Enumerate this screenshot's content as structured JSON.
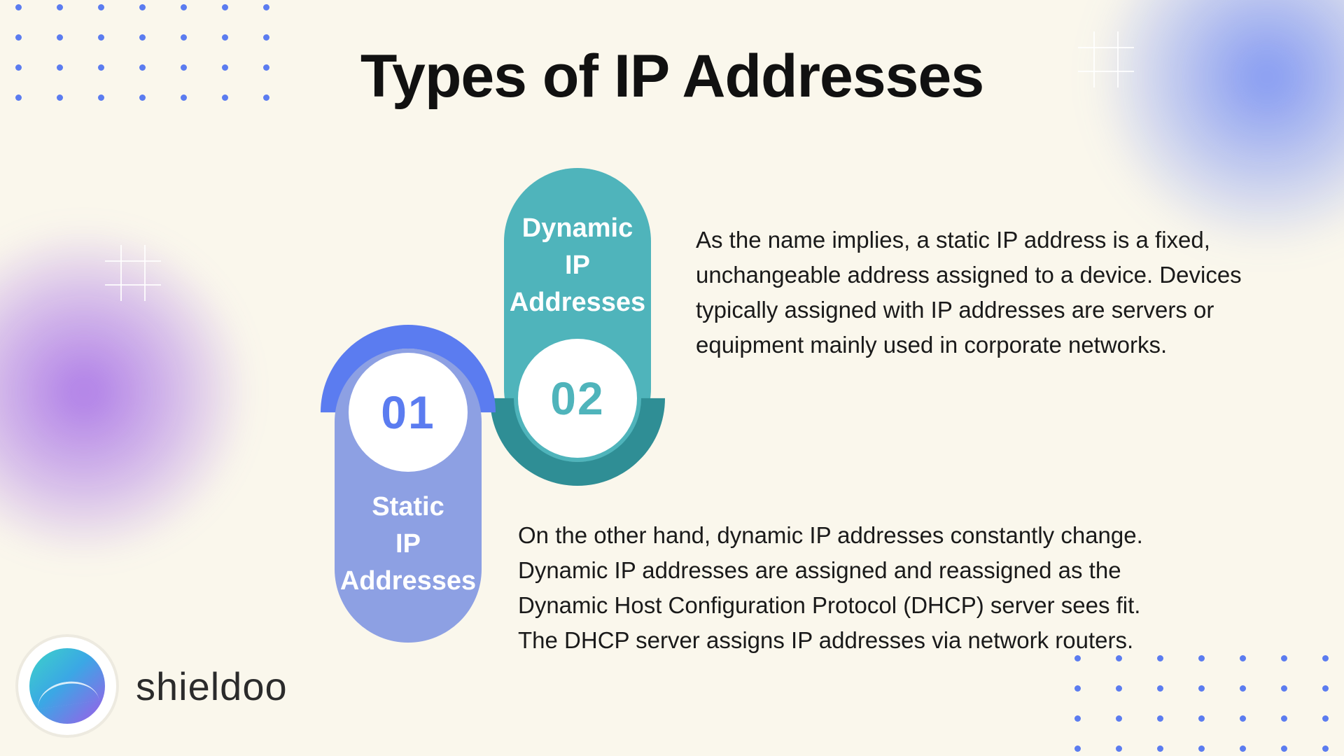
{
  "title": "Types of IP Addresses",
  "background_color": "#faf7ec",
  "accent_purple": "#9452e6",
  "accent_blue_blur": "#4d6ef5",
  "dot_color": "#5b7cf0",
  "pills": {
    "p1": {
      "number": "01",
      "label_line1": "Static",
      "label_line2": "IP",
      "label_line3": "Addresses",
      "fill_color": "#8da0e3",
      "arc_color": "#5b7cf0",
      "number_color": "#5b7cf0"
    },
    "p2": {
      "number": "02",
      "label_line1": "Dynamic",
      "label_line2": "IP",
      "label_line3": "Addresses",
      "fill_color": "#4fb4bb",
      "arc_color": "#2f8e95",
      "number_color": "#4fb4bb"
    }
  },
  "paragraphs": {
    "static": "As the name implies, a static IP address is a fixed, unchangeable address assigned to a device. Devices typically assigned with IP addresses are servers or equipment mainly used in corporate networks.",
    "dynamic": "On the other hand, dynamic IP addresses constantly change. Dynamic IP addresses are assigned and reassigned as the Dynamic Host Configuration Protocol (DHCP) server sees fit. The DHCP server assigns IP addresses via network routers."
  },
  "body_fontsize_pt": 25,
  "title_fontsize_pt": 65,
  "pill_label_fontsize_pt": 29,
  "pill_number_fontsize_pt": 50,
  "brand": {
    "name": "shieldoo",
    "text_color": "#2b2b2b",
    "gradient_from": "#3cd3c8",
    "gradient_mid": "#3ba7e5",
    "gradient_to": "#a05ae8"
  }
}
